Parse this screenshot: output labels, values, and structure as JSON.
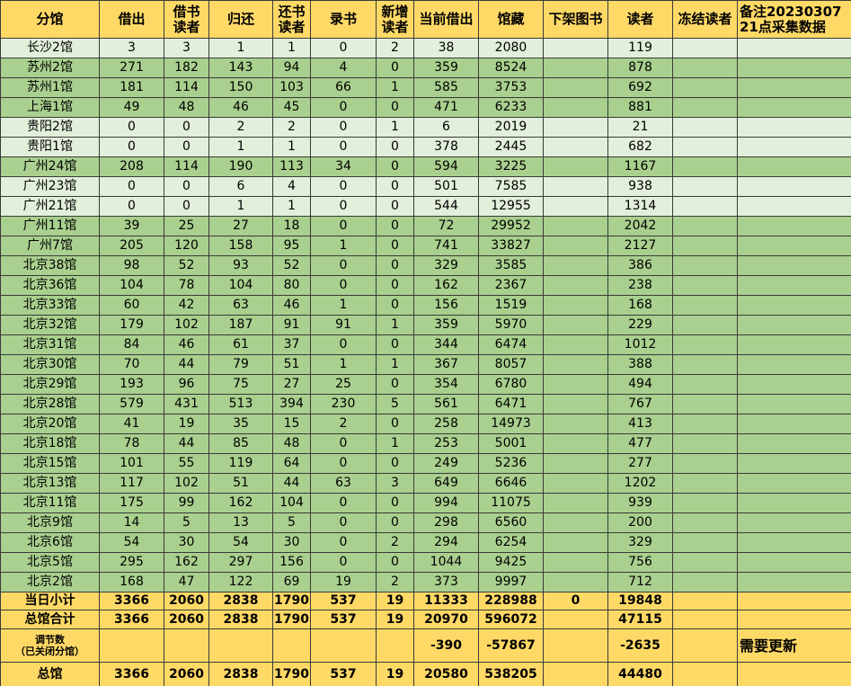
{
  "table": {
    "header": [
      "分馆",
      "借出",
      "借书\n读者",
      "归还",
      "还书\n读者",
      "录书",
      "新增\n读者",
      "当前借出",
      "馆藏",
      "下架图书",
      "读者",
      "冻结读者",
      "备注20230307\n21点采集数据"
    ],
    "rows": [
      [
        "长沙2馆",
        3,
        3,
        1,
        1,
        0,
        2,
        38,
        2080,
        119
      ],
      [
        "苏州2馆",
        271,
        182,
        143,
        94,
        4,
        0,
        359,
        8524,
        878
      ],
      [
        "苏州1馆",
        181,
        114,
        150,
        103,
        66,
        1,
        585,
        3753,
        692
      ],
      [
        "上海1馆",
        49,
        48,
        46,
        45,
        0,
        0,
        471,
        6233,
        881
      ],
      [
        "贵阳2馆",
        0,
        0,
        2,
        2,
        0,
        1,
        6,
        2019,
        21
      ],
      [
        "贵阳1馆",
        0,
        0,
        1,
        1,
        0,
        0,
        378,
        2445,
        682
      ],
      [
        "广州24馆",
        208,
        114,
        190,
        113,
        34,
        0,
        594,
        3225,
        1167
      ],
      [
        "广州23馆",
        0,
        0,
        6,
        4,
        0,
        0,
        501,
        7585,
        938
      ],
      [
        "广州21馆",
        0,
        0,
        1,
        1,
        0,
        0,
        544,
        12955,
        1314
      ],
      [
        "广州11馆",
        39,
        25,
        27,
        18,
        0,
        0,
        72,
        29952,
        2042
      ],
      [
        "广州7馆",
        205,
        120,
        158,
        95,
        1,
        0,
        741,
        33827,
        2127
      ],
      [
        "北京38馆",
        98,
        52,
        93,
        52,
        0,
        0,
        329,
        3585,
        386
      ],
      [
        "北京36馆",
        104,
        78,
        104,
        80,
        0,
        0,
        162,
        2367,
        238
      ],
      [
        "北京33馆",
        60,
        42,
        63,
        46,
        1,
        0,
        156,
        1519,
        168
      ],
      [
        "北京32馆",
        179,
        102,
        187,
        91,
        91,
        1,
        359,
        5970,
        229
      ],
      [
        "北京31馆",
        84,
        46,
        61,
        37,
        0,
        0,
        344,
        6474,
        1012
      ],
      [
        "北京30馆",
        70,
        44,
        79,
        51,
        1,
        1,
        367,
        8057,
        388
      ],
      [
        "北京29馆",
        193,
        96,
        75,
        27,
        25,
        0,
        354,
        6780,
        494
      ],
      [
        "北京28馆",
        579,
        431,
        513,
        394,
        230,
        5,
        561,
        6471,
        767
      ],
      [
        "北京20馆",
        41,
        19,
        35,
        15,
        2,
        0,
        258,
        14973,
        413
      ],
      [
        "北京18馆",
        78,
        44,
        85,
        48,
        0,
        1,
        253,
        5001,
        477
      ],
      [
        "北京15馆",
        101,
        55,
        119,
        64,
        0,
        0,
        249,
        5236,
        277
      ],
      [
        "北京13馆",
        117,
        102,
        51,
        44,
        63,
        3,
        649,
        6646,
        1202
      ],
      [
        "北京11馆",
        175,
        99,
        162,
        104,
        0,
        0,
        994,
        11075,
        939
      ],
      [
        "北京9馆",
        14,
        5,
        13,
        5,
        0,
        0,
        298,
        6560,
        200
      ],
      [
        "北京6馆",
        54,
        30,
        54,
        30,
        0,
        2,
        294,
        6254,
        329
      ],
      [
        "北京5馆",
        295,
        162,
        297,
        156,
        0,
        0,
        1044,
        9425,
        756
      ],
      [
        "北京2馆",
        168,
        47,
        122,
        69,
        19,
        2,
        373,
        9997,
        712
      ]
    ],
    "summary": [
      {
        "0": "当日小计",
        "1": 3366,
        "2": 2060,
        "3": 2838,
        "4": 1790,
        "5": 537,
        "6": 19,
        "7": 11333,
        "8": 228988,
        "9": 0,
        "10": 19848
      },
      {
        "0": "总馆合计",
        "1": 3366,
        "2": 2060,
        "3": 2838,
        "4": 1790,
        "5": 537,
        "6": 19,
        "7": 20970,
        "8": 596072,
        "10": 47115
      },
      {
        "0": "调节数\n（已关闭分馆）",
        "7": -390,
        "8": -57867,
        "10": -2635,
        "12": "需要更新"
      },
      {
        "0": "总馆",
        "1": 3366,
        "2": 2060,
        "3": 2838,
        "4": 1790,
        "5": 537,
        "6": 19,
        "7": 20580,
        "8": 538205,
        "10": 44480
      }
    ]
  }
}
